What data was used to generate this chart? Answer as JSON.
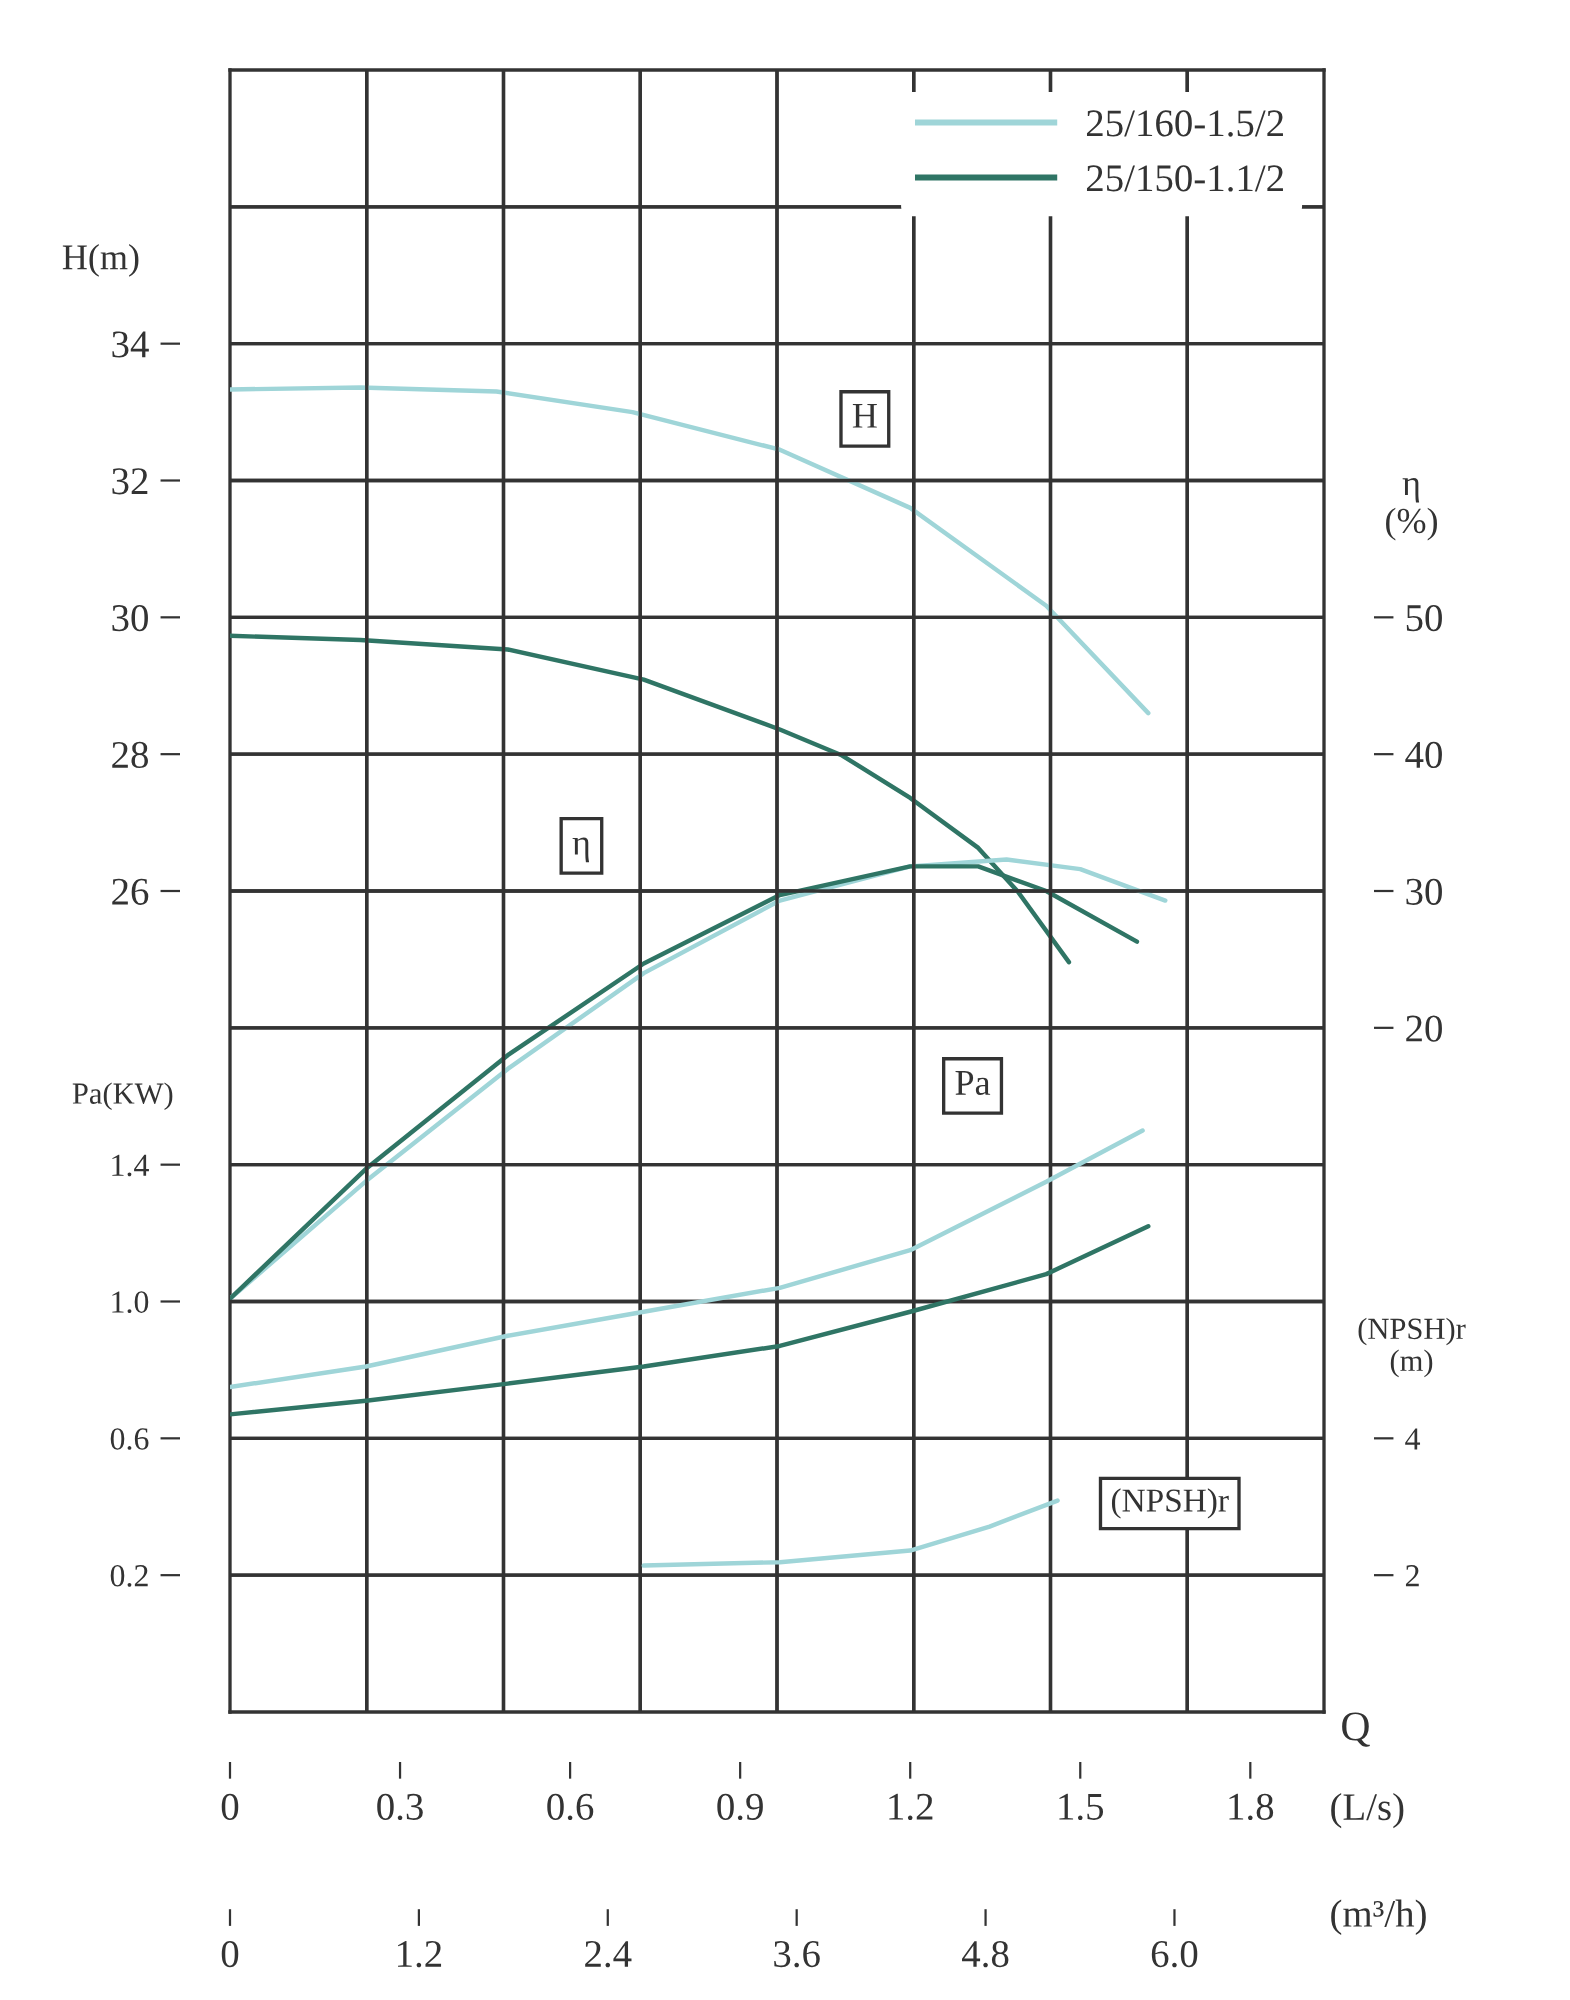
{
  "chart_data": [
    {
      "type": "line",
      "grid": true,
      "legend": "top right",
      "tick_labels": "y",
      "ylabel": "H(m)",
      "y2label": "η\n(%)",
      "xlim": [
        0,
        1.93
      ],
      "ylim": [
        14,
        38
      ],
      "yticks": [
        26,
        28,
        30,
        32,
        34
      ],
      "y2lim": [
        -30,
        90
      ],
      "y2ticks": [
        20,
        30,
        40,
        50
      ],
      "annotations": [
        {
          "text": "H",
          "x": 1.12,
          "y": 32.9
        },
        {
          "text": "η",
          "x": 0.62,
          "y": 26.66
        }
      ],
      "series": [
        {
          "name": "25/160-1.5/2",
          "color": "#9fd5d8",
          "x": [
            0,
            0.23,
            0.47,
            0.71,
            0.97,
            1.2,
            1.44,
            1.62
          ],
          "values": [
            33.33,
            33.36,
            33.3,
            33.0,
            32.45,
            31.6,
            30.17,
            28.6
          ]
        },
        {
          "name": "25/150-1.1/2",
          "color": "#2f7565",
          "x": [
            0,
            0.23,
            0.49,
            0.73,
            0.97,
            1.08,
            1.2,
            1.32,
            1.39,
            1.48
          ],
          "values": [
            29.73,
            29.67,
            29.53,
            29.09,
            28.36,
            27.98,
            27.36,
            26.63,
            25.99,
            24.96
          ]
        },
        {
          "axis": "y2",
          "color": "#9fd5d8",
          "x": [
            0,
            0.24,
            0.49,
            0.73,
            0.97,
            1.2,
            1.37,
            1.5,
            1.65
          ],
          "values": [
            0.2,
            8.8,
            17.0,
            24.0,
            29.3,
            31.8,
            32.3,
            31.6,
            29.3
          ]
        },
        {
          "axis": "y2",
          "color": "#2f7565",
          "x": [
            0,
            0.24,
            0.49,
            0.73,
            0.97,
            1.2,
            1.32,
            1.44,
            1.6
          ],
          "values": [
            0.2,
            9.7,
            18.0,
            24.7,
            29.7,
            31.8,
            31.8,
            30.0,
            26.3
          ]
        }
      ]
    },
    {
      "type": "line",
      "grid": true,
      "ylabel": "Pa(KW)",
      "y2label": "(NPSH)r\n(m)",
      "xlabel": "(L/s)",
      "x2label": "(m³/h)",
      "xlim": [
        0,
        1.93
      ],
      "xticks": [
        0,
        0.3,
        0.6,
        0.9,
        1.2,
        1.5,
        1.8
      ],
      "x2lim": [
        0,
        6.95
      ],
      "x2ticks": [
        0,
        1.2,
        2.4,
        3.6,
        4.8,
        {
          "value": 6.0,
          "label": "6.0"
        }
      ],
      "ylim": [
        -0.2,
        4.6
      ],
      "yticks": [
        0.2,
        0.6,
        {
          "value": 1.0,
          "label": "1.0"
        },
        1.4
      ],
      "y2lim": [
        0,
        24
      ],
      "y2ticks": [
        2,
        4
      ],
      "annotations": [
        {
          "text": "Pa",
          "x": 1.31,
          "y": 1.63
        },
        "(NPSH)r",
        "Q"
      ],
      "series": [
        {
          "color": "#9fd5d8",
          "x": [
            0,
            0.24,
            0.49,
            0.73,
            0.97,
            1.2,
            1.44,
            1.61
          ],
          "values": [
            0.75,
            0.81,
            0.9,
            0.97,
            1.04,
            1.15,
            1.35,
            1.5
          ]
        },
        {
          "color": "#2f7565",
          "x": [
            0,
            0.24,
            0.49,
            0.73,
            0.97,
            1.2,
            1.44,
            1.62
          ],
          "values": [
            0.67,
            0.71,
            0.76,
            0.81,
            0.87,
            0.97,
            1.08,
            1.22
          ]
        },
        {
          "axis": "y2",
          "color": "#9fd5d8",
          "x": [
            0.73,
            0.97,
            1.2,
            1.34,
            1.46
          ],
          "values": [
            2.14,
            2.19,
            2.36,
            2.71,
            3.09
          ]
        }
      ]
    }
  ]
}
